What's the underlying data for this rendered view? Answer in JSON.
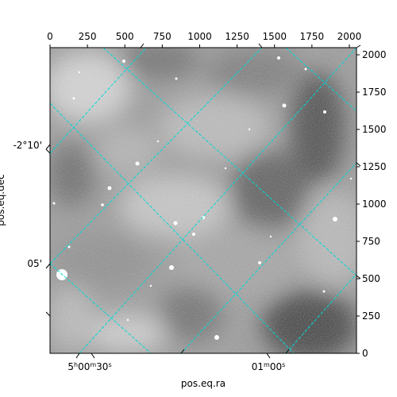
{
  "chart_data": {
    "type": "image",
    "xlabel": "pos.eq.ra",
    "ylabel": "pos.eq.dec",
    "pixel_x_ticks": [
      0,
      250,
      500,
      750,
      1000,
      1250,
      1500,
      1750,
      2000
    ],
    "pixel_y_ticks": [
      0,
      250,
      500,
      750,
      1000,
      1250,
      1500,
      1750,
      2000
    ],
    "pixel_xlim": [
      0,
      2048
    ],
    "pixel_ylim": [
      0,
      2048
    ],
    "ra_tick_labels": [
      "5h00m30s",
      "01m00s"
    ],
    "dec_tick_labels": [
      "-2°10'",
      "05'"
    ],
    "grid": true,
    "grid_color": "#00d8d8",
    "colormap": "grayscale"
  }
}
